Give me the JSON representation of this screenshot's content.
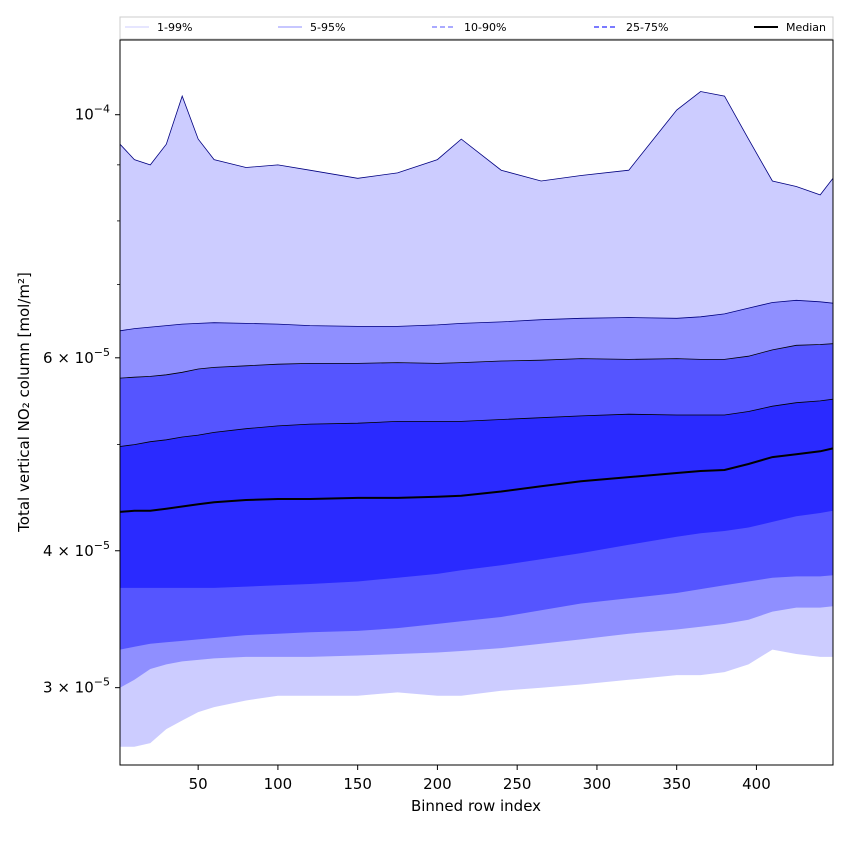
{
  "chart_data": {
    "type": "area",
    "xlabel": "Binned row index",
    "ylabel": "Total vertical NO₂ column [mol/m²]",
    "y_scale": "log",
    "xlim": [
      1,
      448
    ],
    "ylim": [
      2.55e-05,
      0.000117
    ],
    "x_ticks": [
      50,
      100,
      150,
      200,
      250,
      300,
      350,
      400
    ],
    "y_ticks": [
      {
        "value": 0.0001,
        "mantissa": "",
        "base": "10",
        "exponent": "−4"
      },
      {
        "value": 6e-05,
        "mantissa": "6 × ",
        "base": "10",
        "exponent": "−5"
      },
      {
        "value": 4e-05,
        "mantissa": "4 × ",
        "base": "10",
        "exponent": "−5"
      },
      {
        "value": 3e-05,
        "mantissa": "3 × ",
        "base": "10",
        "exponent": "−5"
      }
    ],
    "y_minor_ticks": [
      2e-05,
      5e-05,
      7e-05,
      8e-05,
      9e-05
    ],
    "legend_position": "top, horizontal",
    "legend": [
      "1-99%",
      "5-95%",
      "10-90%",
      "25-75%",
      "Median"
    ],
    "x": [
      1,
      10,
      20,
      30,
      40,
      50,
      60,
      80,
      100,
      120,
      150,
      175,
      200,
      215,
      240,
      265,
      290,
      320,
      350,
      365,
      380,
      395,
      410,
      425,
      440,
      448
    ],
    "bands": [
      {
        "name": "1-99%",
        "fill": "#ccccff",
        "line": "#000080",
        "low": [
          2.65e-05,
          2.65e-05,
          2.67e-05,
          2.75e-05,
          2.8e-05,
          2.85e-05,
          2.88e-05,
          2.92e-05,
          2.95e-05,
          2.95e-05,
          2.95e-05,
          2.97e-05,
          2.95e-05,
          2.95e-05,
          2.98e-05,
          3e-05,
          3.02e-05,
          3.05e-05,
          3.08e-05,
          3.08e-05,
          3.1e-05,
          3.15e-05,
          3.25e-05,
          3.22e-05,
          3.2e-05,
          3.2e-05
        ],
        "high": [
          9.4e-05,
          9.1e-05,
          9e-05,
          9.4e-05,
          0.000104,
          9.5e-05,
          9.1e-05,
          8.95e-05,
          9e-05,
          8.9e-05,
          8.75e-05,
          8.85e-05,
          9.1e-05,
          9.5e-05,
          8.9e-05,
          8.7e-05,
          8.8e-05,
          8.9e-05,
          0.000101,
          0.000105,
          0.000104,
          9.5e-05,
          8.7e-05,
          8.6e-05,
          8.45e-05,
          8.75e-05
        ]
      },
      {
        "name": "5-95%",
        "fill": "#8f8fff",
        "line": "#000080",
        "low": [
          3e-05,
          3.05e-05,
          3.12e-05,
          3.15e-05,
          3.17e-05,
          3.18e-05,
          3.19e-05,
          3.2e-05,
          3.2e-05,
          3.2e-05,
          3.21e-05,
          3.22e-05,
          3.23e-05,
          3.24e-05,
          3.26e-05,
          3.29e-05,
          3.32e-05,
          3.36e-05,
          3.39e-05,
          3.41e-05,
          3.43e-05,
          3.46e-05,
          3.52e-05,
          3.55e-05,
          3.55e-05,
          3.56e-05
        ],
        "high": [
          6.35e-05,
          6.38e-05,
          6.4e-05,
          6.42e-05,
          6.44e-05,
          6.45e-05,
          6.46e-05,
          6.45e-05,
          6.44e-05,
          6.42e-05,
          6.41e-05,
          6.41e-05,
          6.43e-05,
          6.45e-05,
          6.47e-05,
          6.5e-05,
          6.52e-05,
          6.53e-05,
          6.52e-05,
          6.54e-05,
          6.58e-05,
          6.66e-05,
          6.74e-05,
          6.77e-05,
          6.75e-05,
          6.73e-05
        ]
      },
      {
        "name": "10-90%",
        "fill": "#5555ff",
        "line": "#000000",
        "low": [
          3.25e-05,
          3.27e-05,
          3.29e-05,
          3.3e-05,
          3.31e-05,
          3.32e-05,
          3.33e-05,
          3.35e-05,
          3.36e-05,
          3.37e-05,
          3.38e-05,
          3.4e-05,
          3.43e-05,
          3.45e-05,
          3.48e-05,
          3.53e-05,
          3.58e-05,
          3.62e-05,
          3.66e-05,
          3.69e-05,
          3.72e-05,
          3.75e-05,
          3.78e-05,
          3.79e-05,
          3.79e-05,
          3.8e-05
        ],
        "high": [
          5.75e-05,
          5.76e-05,
          5.77e-05,
          5.79e-05,
          5.82e-05,
          5.86e-05,
          5.88e-05,
          5.9e-05,
          5.92e-05,
          5.93e-05,
          5.93e-05,
          5.94e-05,
          5.93e-05,
          5.94e-05,
          5.96e-05,
          5.97e-05,
          5.99e-05,
          5.98e-05,
          5.99e-05,
          5.98e-05,
          5.98e-05,
          6.02e-05,
          6.1e-05,
          6.16e-05,
          6.17e-05,
          6.18e-05
        ]
      },
      {
        "name": "25-75%",
        "fill": "#2a2aff",
        "line": "#000000",
        "low": [
          3.7e-05,
          3.7e-05,
          3.7e-05,
          3.7e-05,
          3.7e-05,
          3.7e-05,
          3.7e-05,
          3.71e-05,
          3.72e-05,
          3.73e-05,
          3.75e-05,
          3.78e-05,
          3.81e-05,
          3.84e-05,
          3.88e-05,
          3.93e-05,
          3.98e-05,
          4.05e-05,
          4.12e-05,
          4.15e-05,
          4.17e-05,
          4.2e-05,
          4.25e-05,
          4.3e-05,
          4.33e-05,
          4.35e-05
        ],
        "high": [
          4.98e-05,
          5e-05,
          5.03e-05,
          5.05e-05,
          5.08e-05,
          5.1e-05,
          5.13e-05,
          5.17e-05,
          5.2e-05,
          5.22e-05,
          5.23e-05,
          5.25e-05,
          5.25e-05,
          5.25e-05,
          5.27e-05,
          5.29e-05,
          5.31e-05,
          5.33e-05,
          5.32e-05,
          5.32e-05,
          5.32e-05,
          5.36e-05,
          5.42e-05,
          5.46e-05,
          5.48e-05,
          5.5e-05
        ]
      }
    ],
    "median": {
      "name": "Median",
      "color": "#000000",
      "values": [
        4.34e-05,
        4.35e-05,
        4.35e-05,
        4.37e-05,
        4.39e-05,
        4.41e-05,
        4.43e-05,
        4.45e-05,
        4.46e-05,
        4.46e-05,
        4.47e-05,
        4.47e-05,
        4.48e-05,
        4.49e-05,
        4.53e-05,
        4.58e-05,
        4.63e-05,
        4.67e-05,
        4.71e-05,
        4.73e-05,
        4.74e-05,
        4.8e-05,
        4.87e-05,
        4.9e-05,
        4.93e-05,
        4.96e-05
      ]
    }
  }
}
